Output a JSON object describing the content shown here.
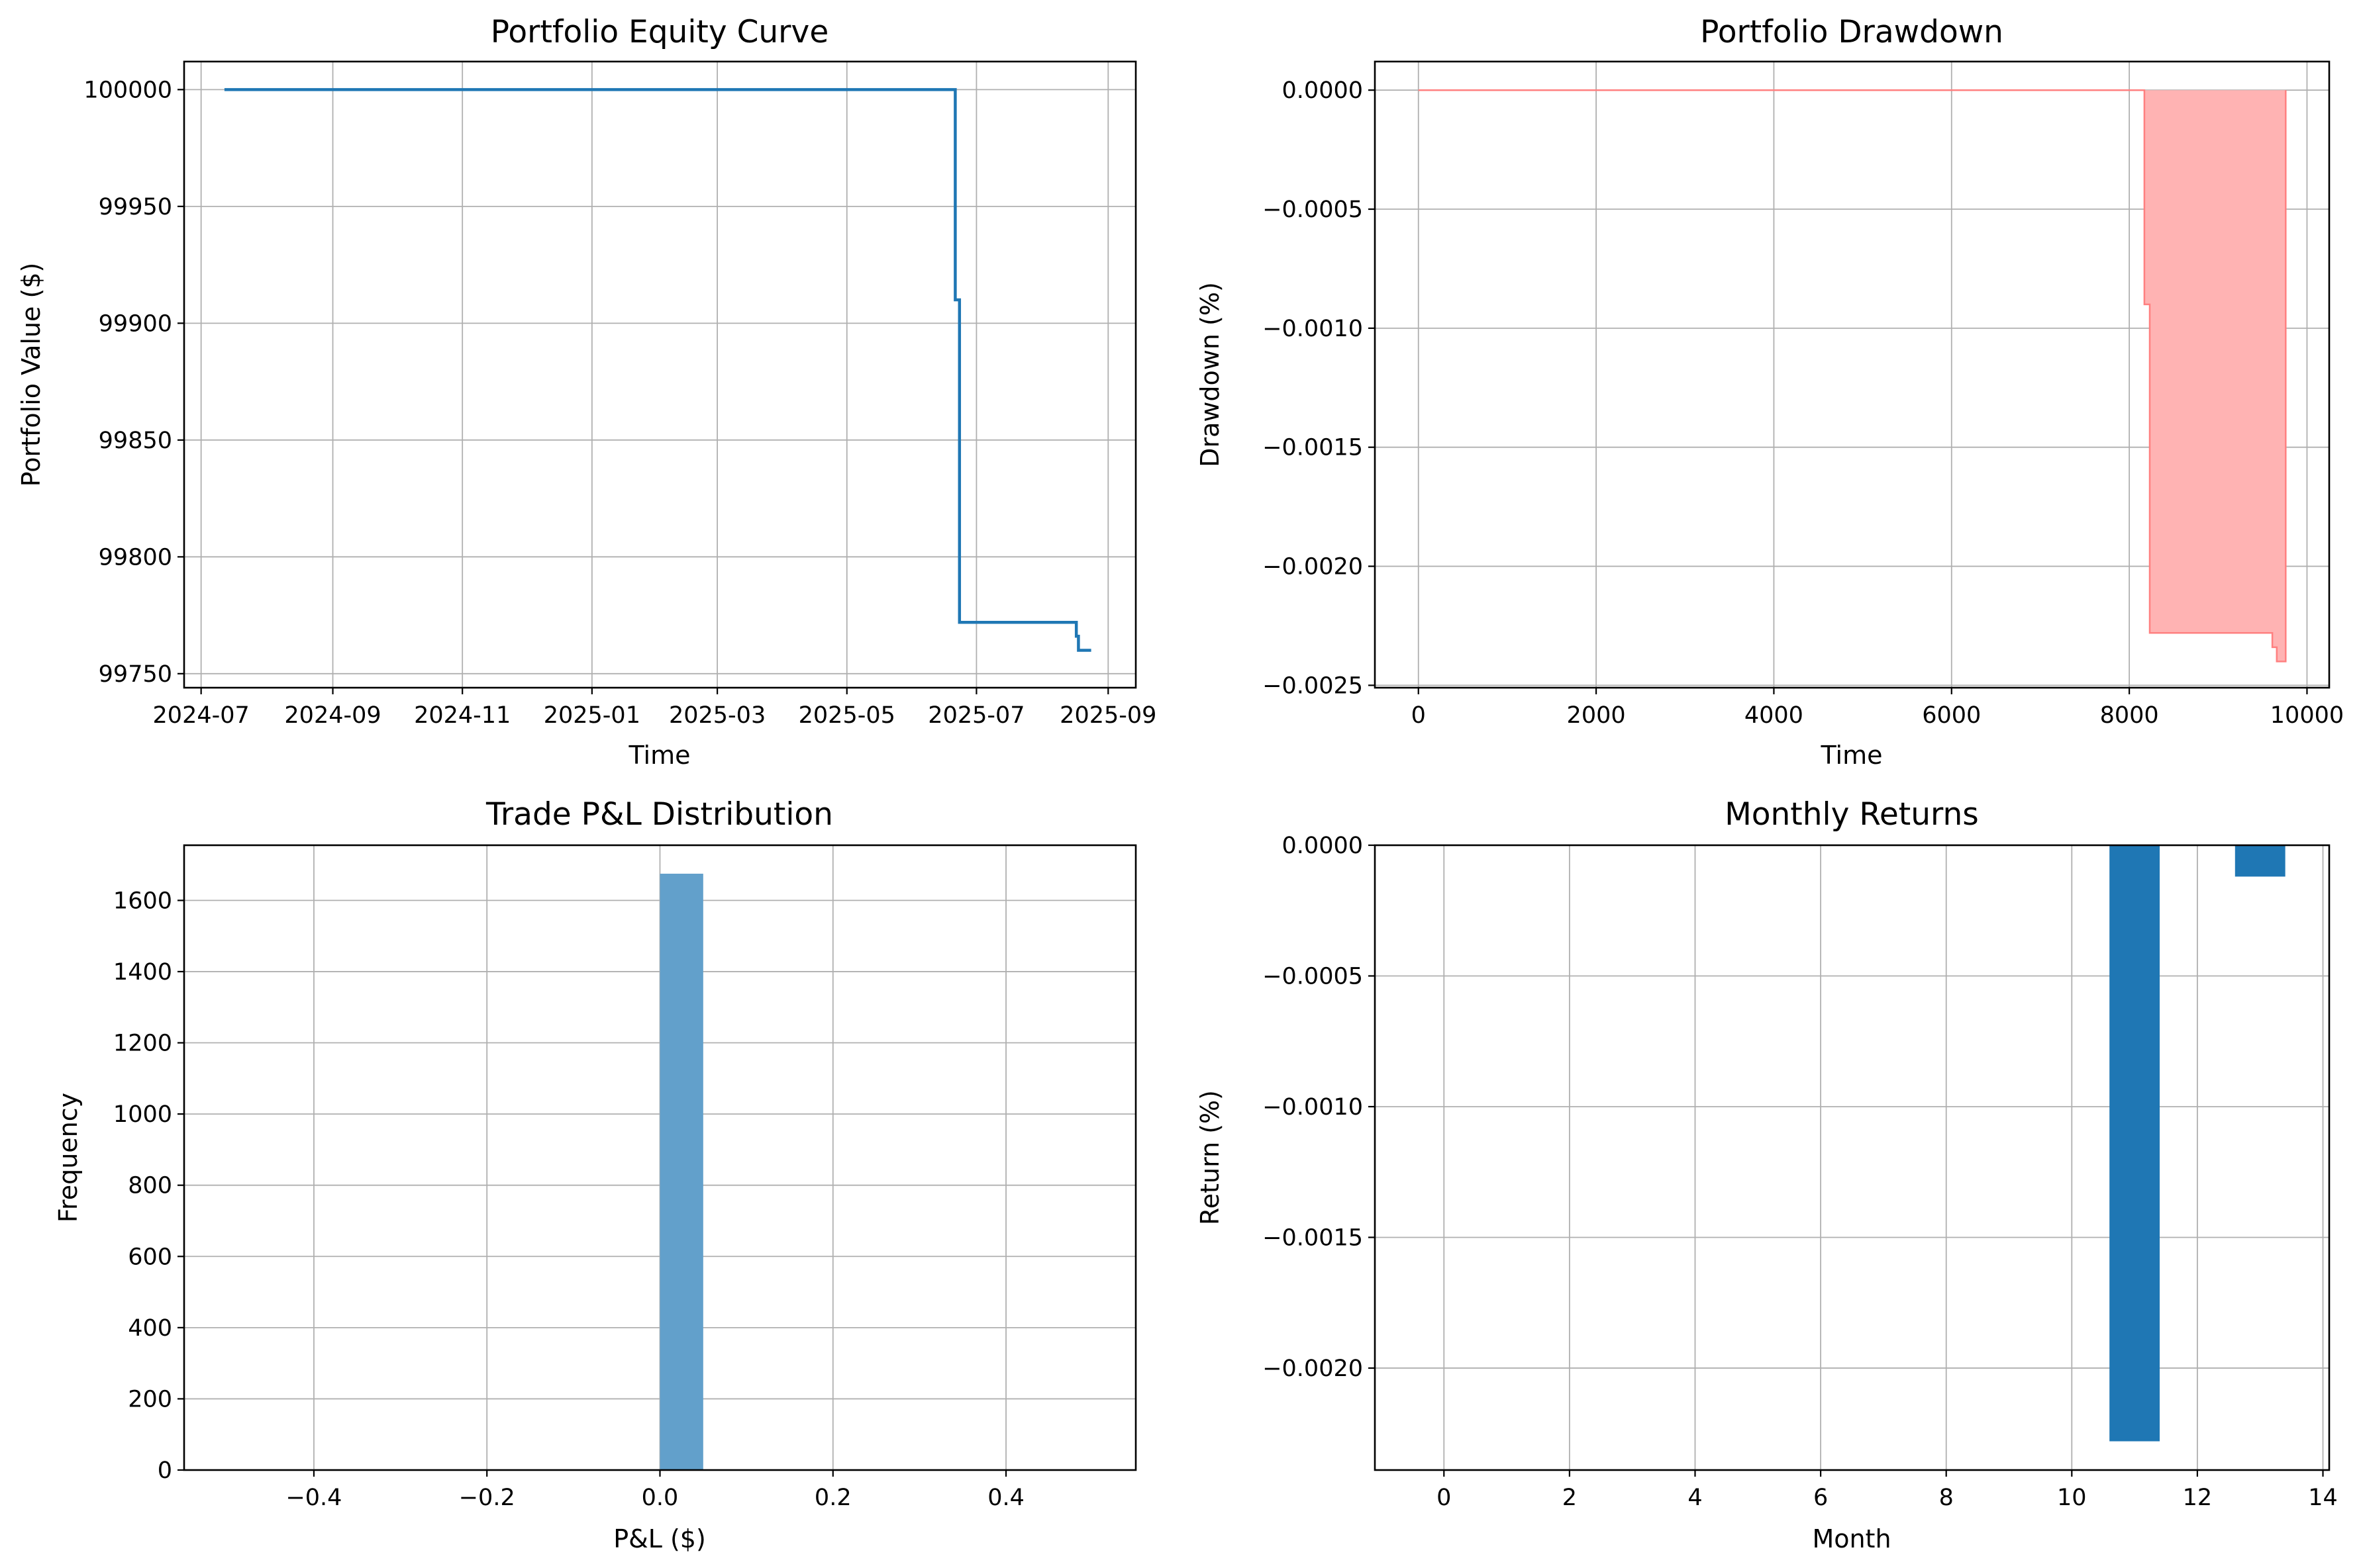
{
  "colors": {
    "line": "#1f77b4",
    "drawdown_fill": "#ffb3b3",
    "drawdown_edge": "#ff8080",
    "hist": "#62a0cb",
    "bar": "#1f77b4",
    "grid": "#b0b0b0"
  },
  "chart_data": [
    {
      "type": "line",
      "title": "Portfolio Equity Curve",
      "xlabel": "Time",
      "ylabel": "Portfolio Value ($)",
      "grid": true,
      "x_is_date": true,
      "xlim": [
        "2024-06-23",
        "2025-09-14"
      ],
      "ylim": [
        99744,
        100012
      ],
      "xticks": [
        "2024-07-01",
        "2024-09-01",
        "2024-11-01",
        "2025-01-01",
        "2025-03-01",
        "2025-05-01",
        "2025-07-01",
        "2025-09-01"
      ],
      "xtick_labels": [
        "2024-07",
        "2024-09",
        "2024-11",
        "2025-01",
        "2025-03",
        "2025-05",
        "2025-07",
        "2025-09"
      ],
      "yticks": [
        99750,
        99800,
        99850,
        99900,
        99950,
        100000
      ],
      "series": [
        {
          "step": true,
          "x": [
            "2024-07-12",
            "2025-06-21",
            "2025-06-21",
            "2025-06-23",
            "2025-06-23",
            "2025-08-17",
            "2025-08-17",
            "2025-08-18",
            "2025-08-18",
            "2025-08-24"
          ],
          "y": [
            100000,
            100000,
            99910,
            99910,
            99772,
            99772,
            99766,
            99766,
            99760,
            99760
          ]
        }
      ]
    },
    {
      "type": "area",
      "title": "Portfolio Drawdown",
      "xlabel": "Time",
      "ylabel": "Drawdown (%)",
      "grid": true,
      "xlim": [
        -490,
        10250
      ],
      "ylim": [
        -0.00251,
        0.00012
      ],
      "xticks": [
        0,
        2000,
        4000,
        6000,
        8000,
        10000
      ],
      "yticks": [
        0.0,
        -0.0005,
        -0.001,
        -0.0015,
        -0.002,
        -0.0025
      ],
      "ytick_labels": [
        "0.0000",
        "−0.0005",
        "−0.0010",
        "−0.0015",
        "−0.0020",
        "−0.0025"
      ],
      "series": [
        {
          "x": [
            0,
            8170,
            8170,
            8230,
            8230,
            9610,
            9610,
            9660,
            9660,
            9760,
            9760
          ],
          "y": [
            0,
            0,
            -0.0009,
            -0.0009,
            -0.00228,
            -0.00228,
            -0.00234,
            -0.00234,
            -0.0024,
            -0.0024,
            0
          ]
        }
      ]
    },
    {
      "type": "bar",
      "title": "Trade P&L Distribution",
      "xlabel": "P&L ($)",
      "ylabel": "Frequency",
      "grid": true,
      "xlim": [
        -0.55,
        0.55
      ],
      "ylim": [
        0,
        1755
      ],
      "xticks": [
        -0.4,
        -0.2,
        0.0,
        0.2,
        0.4
      ],
      "xtick_labels": [
        "−0.4",
        "−0.2",
        "0.0",
        "0.2",
        "0.4"
      ],
      "yticks": [
        0,
        200,
        400,
        600,
        800,
        1000,
        1200,
        1400,
        1600
      ],
      "bins": [
        {
          "x0": 0.0,
          "x1": 0.05,
          "count": 1675
        }
      ]
    },
    {
      "type": "bar",
      "title": "Monthly Returns",
      "xlabel": "Month",
      "ylabel": "Return (%)",
      "grid": true,
      "xlim": [
        -1.1,
        14.1
      ],
      "ylim": [
        -0.00239,
        0.0
      ],
      "xticks": [
        0,
        2,
        4,
        6,
        8,
        10,
        12,
        14
      ],
      "yticks": [
        0.0,
        -0.0005,
        -0.001,
        -0.0015,
        -0.002
      ],
      "ytick_labels": [
        "0.0000",
        "−0.0005",
        "−0.0010",
        "−0.0015",
        "−0.0020"
      ],
      "bar_width": 0.8,
      "categories": [
        11,
        13
      ],
      "values": [
        -0.00228,
        -0.00012
      ]
    }
  ]
}
